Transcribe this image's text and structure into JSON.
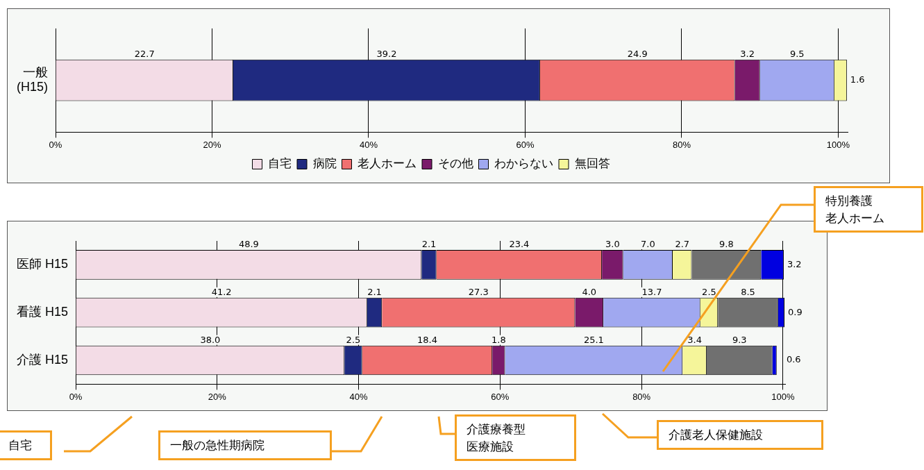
{
  "chart_data": [
    {
      "type": "bar",
      "orientation": "horizontal",
      "stacked": true,
      "categories": [
        "一般\n(H15)"
      ],
      "series": [
        {
          "name": "自宅",
          "color": "#f3dce6",
          "values": [
            22.7
          ]
        },
        {
          "name": "病院",
          "color": "#1f2a80",
          "values": [
            39.2
          ]
        },
        {
          "name": "老人ホーム",
          "color": "#f07070",
          "values": [
            24.9
          ]
        },
        {
          "name": "その他",
          "color": "#7a1a6a",
          "values": [
            3.2
          ]
        },
        {
          "name": "わからない",
          "color": "#a0a8f0",
          "values": [
            9.5
          ]
        },
        {
          "name": "無回答",
          "color": "#f5f59a",
          "values": [
            1.6
          ]
        }
      ],
      "xlim": [
        0,
        101.2
      ],
      "xticks": [
        {
          "value": 0,
          "label": "0%"
        },
        {
          "value": 20,
          "label": "20%"
        },
        {
          "value": 40,
          "label": "40%"
        },
        {
          "value": 60,
          "label": "60%"
        },
        {
          "value": 80,
          "label": "80%"
        },
        {
          "value": 100,
          "label": "100%"
        }
      ],
      "grid": "x",
      "legend": "bottom",
      "data_labels": true
    },
    {
      "type": "bar",
      "orientation": "horizontal",
      "stacked": true,
      "categories": [
        "医師 H15",
        "看護 H15",
        "介護 H15"
      ],
      "series": [
        {
          "color": "#f3dce6",
          "values": [
            48.9,
            41.2,
            38.0
          ],
          "value_labels": [
            "48.9",
            "41.2",
            "38.0"
          ]
        },
        {
          "color": "#1f2a80",
          "values": [
            2.1,
            2.1,
            2.5
          ],
          "value_labels": [
            "2.1",
            "2.1",
            "2.5"
          ]
        },
        {
          "color": "#f07070",
          "values": [
            23.4,
            27.3,
            18.4
          ],
          "value_labels": [
            "23.4",
            "27.3",
            "18.4"
          ]
        },
        {
          "color": "#7a1a6a",
          "values": [
            3.0,
            4.0,
            1.8
          ],
          "value_labels": [
            "3.0",
            "4.0",
            "1.8"
          ]
        },
        {
          "color": "#a0a8f0",
          "values": [
            7.0,
            13.7,
            25.1
          ],
          "value_labels": [
            "7.0",
            "13.7",
            "25.1"
          ]
        },
        {
          "color": "#f5f59a",
          "values": [
            2.7,
            2.5,
            3.4
          ],
          "value_labels": [
            "2.7",
            "2.5",
            "3.4"
          ]
        },
        {
          "color": "#707070",
          "values": [
            9.8,
            8.5,
            9.3
          ],
          "value_labels": [
            "9.8",
            "8.5",
            "9.3"
          ]
        },
        {
          "color": "#0000e0",
          "values": [
            3.2,
            0.9,
            0.6
          ],
          "value_labels": [
            "3.2",
            "0.9",
            "0.6"
          ]
        }
      ],
      "xlim": [
        0,
        100.3
      ],
      "xticks": [
        {
          "value": 0,
          "label": "0%"
        },
        {
          "value": 20,
          "label": "20%"
        },
        {
          "value": 40,
          "label": "40%"
        },
        {
          "value": 60,
          "label": "60%"
        },
        {
          "value": 80,
          "label": "80%"
        },
        {
          "value": 100,
          "label": "100%"
        }
      ],
      "grid": "x",
      "annotations": [
        "特別養護老人ホーム",
        "自宅",
        "一般の急性期病院",
        "介護療養型医療施設",
        "介護老人保健施設"
      ]
    }
  ]
}
